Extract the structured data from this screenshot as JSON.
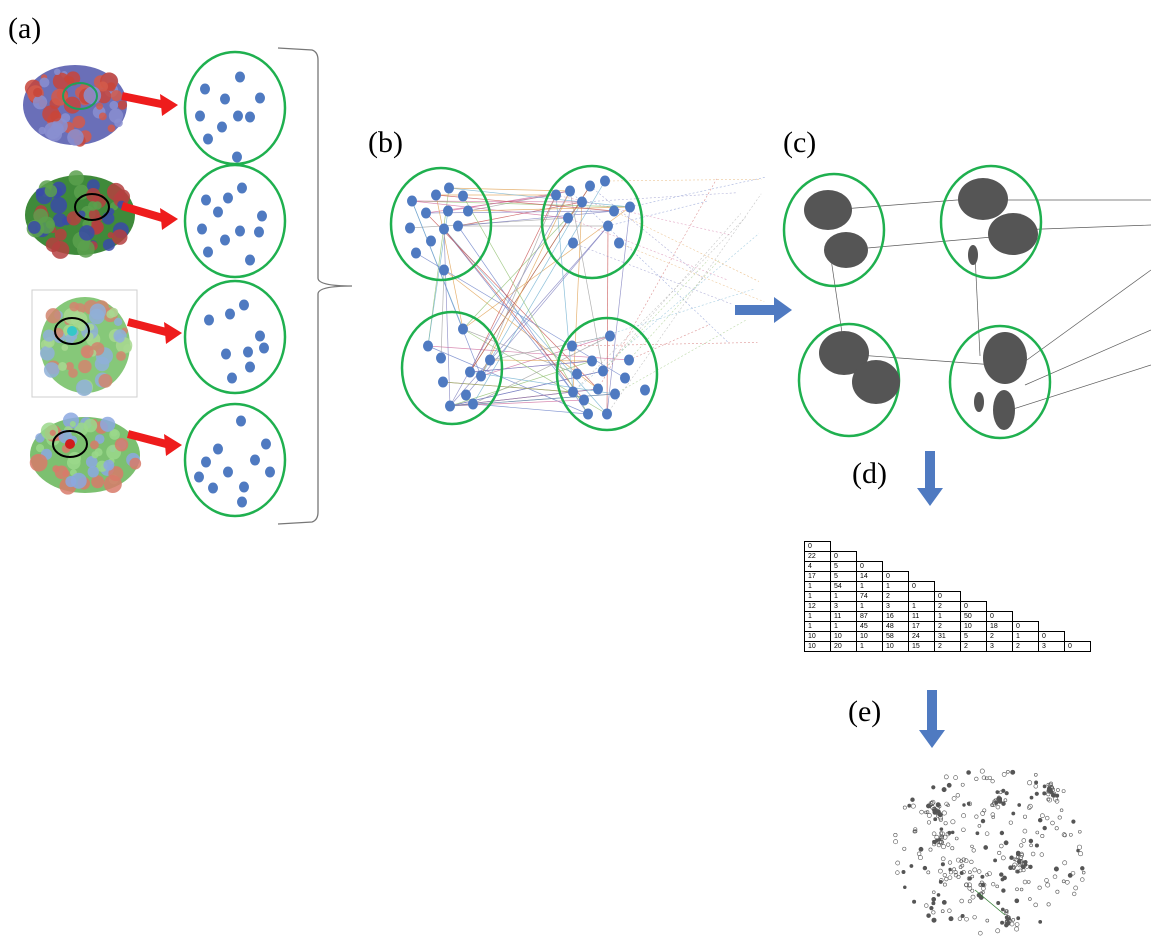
{
  "labels": {
    "a": "(a)",
    "b": "(b)",
    "c": "(c)",
    "d": "(d)",
    "e": "(e)"
  },
  "colors": {
    "node": "#4f7ac1",
    "cluster_ring": "#1fb04f",
    "red_arrow": "#ee1c1c",
    "blue_arrow": "#4f7ac1",
    "blob": "#555555"
  },
  "matrix": {
    "rows": [
      [
        "0"
      ],
      [
        "22",
        "0"
      ],
      [
        "4",
        "5",
        "0"
      ],
      [
        "17",
        "5",
        "14",
        "0"
      ],
      [
        "1",
        "54",
        "1",
        "1",
        "0"
      ],
      [
        "1",
        "1",
        "74",
        "2",
        "",
        "0"
      ],
      [
        "12",
        "3",
        "1",
        "3",
        "1",
        "2",
        "0"
      ],
      [
        "1",
        "11",
        "87",
        "16",
        "11",
        "1",
        "50",
        "0"
      ],
      [
        "1",
        "1",
        "45",
        "48",
        "17",
        "2",
        "10",
        "18",
        "0"
      ],
      [
        "10",
        "10",
        "10",
        "58",
        "24",
        "31",
        "5",
        "2",
        "1",
        "0"
      ],
      [
        "10",
        "20",
        "1",
        "10",
        "15",
        "2",
        "2",
        "3",
        "2",
        "3",
        "0"
      ]
    ]
  }
}
